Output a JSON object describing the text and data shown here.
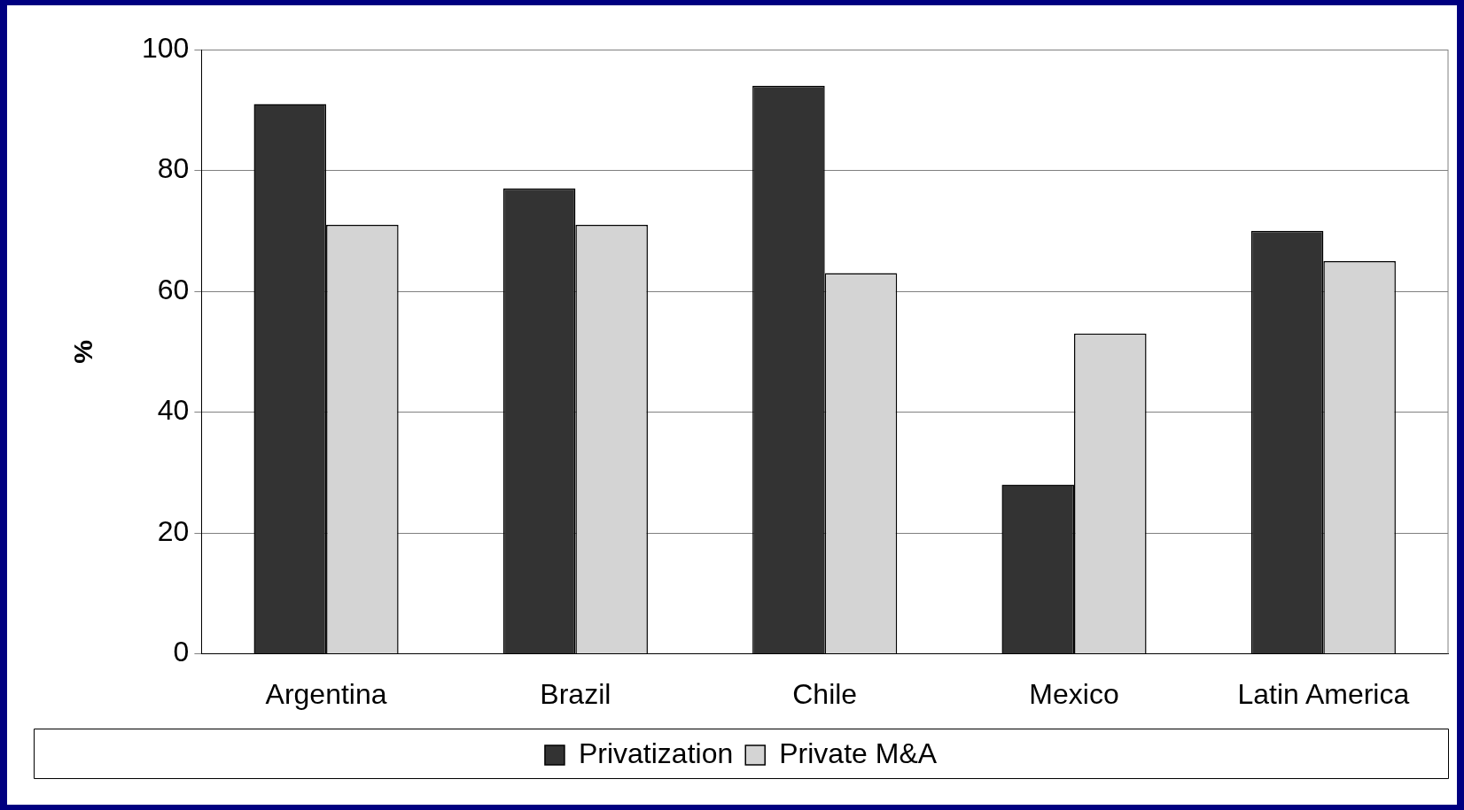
{
  "chart_data": {
    "type": "bar",
    "ylabel": "%",
    "categories": [
      "Argentina",
      "Brazil",
      "Chile",
      "Mexico",
      "Latin America"
    ],
    "series": [
      {
        "name": "Privatization",
        "color": "#333333",
        "values": [
          91,
          77,
          94,
          28,
          70
        ]
      },
      {
        "name": "Private M&A",
        "color": "#d4d4d4",
        "values": [
          71,
          71,
          63,
          53,
          65
        ]
      }
    ],
    "ylim": [
      0,
      100
    ],
    "yticks": [
      0,
      20,
      40,
      60,
      80,
      100
    ],
    "grid": "y",
    "legend": "bottom"
  }
}
